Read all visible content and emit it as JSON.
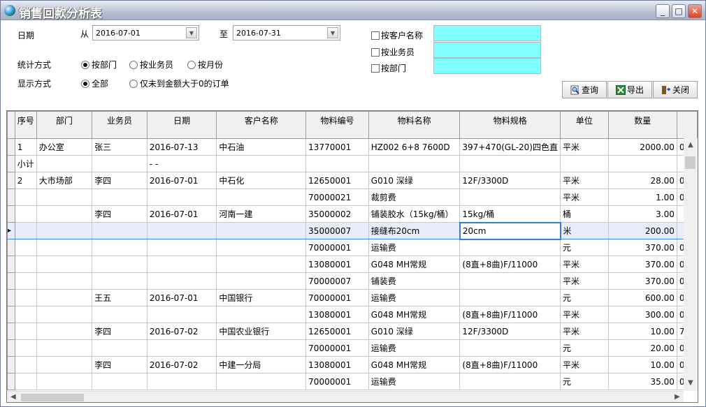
{
  "window": {
    "title": "销售回款分析表",
    "minimize": "_",
    "maximize": "□",
    "close": "✕"
  },
  "filters": {
    "date_label": "日期",
    "from_label": "从",
    "from_value": "2016-07-01",
    "to_label": "至",
    "to_value": "2016-07-31",
    "stat_label": "统计方式",
    "stat_options": [
      "按部门",
      "按业务员",
      "按月份"
    ],
    "stat_selected": 0,
    "display_label": "显示方式",
    "display_options": [
      "全部",
      "仅未到金额大于0的订单"
    ],
    "display_selected": 0,
    "checks": [
      {
        "label": "按客户名称",
        "checked": false,
        "value": ""
      },
      {
        "label": "按业务员",
        "checked": false,
        "value": ""
      },
      {
        "label": "按部门",
        "checked": false,
        "value": ""
      }
    ]
  },
  "toolbar": {
    "query": "查询",
    "export": "导出",
    "close": "关闭"
  },
  "colors": {
    "filter_input": "#80ffff",
    "selection": "#e8ecfa",
    "selection_border": "#3b8ee0"
  },
  "grid": {
    "columns": [
      "序号",
      "部门",
      "业务员",
      "日期",
      "客户名称",
      "物料编号",
      "物料名称",
      "物料规格",
      "单位",
      "数量",
      ""
    ],
    "selected_row": 5,
    "rows": [
      [
        "1",
        "办公室",
        "张三",
        "2016-07-13",
        "中石油",
        "13770001",
        "HZ002 6+8 7600D",
        "397+470(GL-20)四色直",
        "平米",
        "2000.00",
        "0"
      ],
      [
        "小计",
        "",
        "",
        "- -",
        "",
        "",
        "",
        "",
        "",
        "",
        ""
      ],
      [
        "2",
        "大市场部",
        "李四",
        "2016-07-01",
        "中石化",
        "12650001",
        "G010 深绿",
        "12F/3300D",
        "平米",
        "28.00",
        "0"
      ],
      [
        "",
        "",
        "",
        "",
        "",
        "70000021",
        "裁剪费",
        "",
        "平米",
        "1.00",
        "0"
      ],
      [
        "",
        "",
        "李四",
        "2016-07-01",
        "河南一建",
        "35000002",
        "铺装胶水（15kg/桶）",
        "15kg/桶",
        "桶",
        "3.00",
        ""
      ],
      [
        "",
        "",
        "",
        "",
        "",
        "35000007",
        "接缝布20cm",
        "20cm",
        "米",
        "200.00",
        ""
      ],
      [
        "",
        "",
        "",
        "",
        "",
        "70000001",
        "运输费",
        "",
        "元",
        "370.00",
        "0"
      ],
      [
        "",
        "",
        "",
        "",
        "",
        "13080001",
        "G048 MH常规",
        "(8直+8曲)F/11000",
        "平米",
        "370.00",
        "0"
      ],
      [
        "",
        "",
        "",
        "",
        "",
        "70000007",
        "铺装费",
        "",
        "平米",
        "370.00",
        "0"
      ],
      [
        "",
        "",
        "王五",
        "2016-07-01",
        "中国银行",
        "70000001",
        "运输费",
        "",
        "元",
        "600.00",
        "0"
      ],
      [
        "",
        "",
        "",
        "",
        "",
        "13080001",
        "G048 MH常规",
        "(8直+8曲)F/11000",
        "平米",
        "300.00",
        "0"
      ],
      [
        "",
        "",
        "李四",
        "2016-07-02",
        "中国农业银行",
        "12650001",
        "G010 深绿",
        "12F/3300D",
        "平米",
        "10.00",
        "7"
      ],
      [
        "",
        "",
        "",
        "",
        "",
        "70000001",
        "运输费",
        "",
        "元",
        "20.00",
        "0"
      ],
      [
        "",
        "",
        "李四",
        "2016-07-02",
        "中建一分局",
        "13080001",
        "G048 MH常规",
        "(8直+8曲)F/11000",
        "平米",
        "10.00",
        "0"
      ],
      [
        "",
        "",
        "",
        "",
        "",
        "70000001",
        "运输费",
        "",
        "元",
        "35.00",
        "0"
      ]
    ]
  }
}
